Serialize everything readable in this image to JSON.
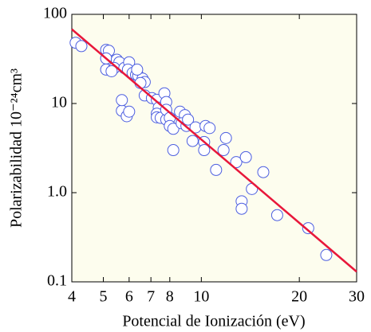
{
  "chart_data": {
    "type": "scatter",
    "x_label": "Potencial de Ionización (eV)",
    "y_label": "Polarizabilidad 10⁻²⁴cm³",
    "log_x": true,
    "log_y": true,
    "xlim": [
      4,
      30
    ],
    "ylim": [
      0.1,
      100
    ],
    "xticks": [
      4,
      5,
      6,
      7,
      8,
      10,
      20,
      30
    ],
    "yticks": [
      0.1,
      {
        "value": 1,
        "label": "1.0"
      },
      10,
      100
    ],
    "background": "#fdfdee",
    "color": "#4d5fe0",
    "x": [
      4.11,
      4.28,
      5.1,
      5.2,
      5.1,
      5.5,
      5.6,
      5.1,
      5.4,
      5.8,
      6.0,
      5.95,
      6.15,
      6.3,
      5.3,
      6.4,
      6.6,
      6.35,
      6.7,
      6.5,
      6.7,
      7.05,
      7.3,
      7.7,
      7.4,
      7.3,
      7.3,
      7.5,
      7.8,
      7.8,
      7.8,
      8.0,
      8.0,
      8.2,
      8.2,
      8.6,
      8.9,
      8.7,
      9.0,
      9.1,
      9.4,
      9.6,
      10.2,
      10.3,
      10.2,
      10.6,
      11.1,
      11.7,
      11.9,
      12.8,
      13.7,
      13.3,
      13.3,
      14.3,
      15.5,
      17.1,
      21.3,
      24.2,
      5.7,
      5.7,
      5.9,
      6.0
    ],
    "values": [
      48,
      44,
      40,
      39,
      32,
      31,
      29,
      24,
      25,
      25,
      29,
      24,
      22,
      21,
      23,
      20.5,
      19,
      24,
      17.4,
      17,
      12.3,
      11.5,
      11,
      13,
      9,
      7.7,
      7,
      6.9,
      6.6,
      10.4,
      8.5,
      6.9,
      5.6,
      5.2,
      3.0,
      8.1,
      7.4,
      6.0,
      5.6,
      6.6,
      3.8,
      5.4,
      3.7,
      5.6,
      3.0,
      5.3,
      1.8,
      3.0,
      4.1,
      2.2,
      2.5,
      0.8,
      0.66,
      1.1,
      1.7,
      0.56,
      0.4,
      0.2,
      8.3,
      10.9,
      7.2,
      8.1
    ],
    "fit": {
      "x": [
        4,
        30
      ],
      "values": [
        68,
        0.13
      ],
      "color": "#e8173a"
    }
  }
}
